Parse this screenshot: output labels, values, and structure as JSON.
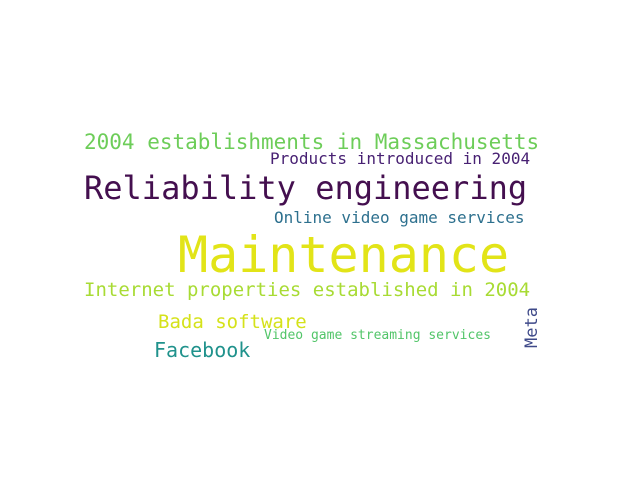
{
  "words": [
    {
      "text": "2004 establishments in Massachusetts",
      "color": "#6dcd59"
    },
    {
      "text": "Products introduced in 2004",
      "color": "#482173"
    },
    {
      "text": "Reliability engineering",
      "color": "#440f4f"
    },
    {
      "text": "Online video game services",
      "color": "#2d708e"
    },
    {
      "text": "Maintenance",
      "color": "#e2e418"
    },
    {
      "text": "Internet properties established in 2004",
      "color": "#a8db34"
    },
    {
      "text": "Bada software",
      "color": "#d5e21a"
    },
    {
      "text": "Facebook",
      "color": "#20928c"
    },
    {
      "text": "Video game streaming services",
      "color": "#52c569"
    },
    {
      "text": "Meta",
      "color": "#3e4989"
    }
  ]
}
